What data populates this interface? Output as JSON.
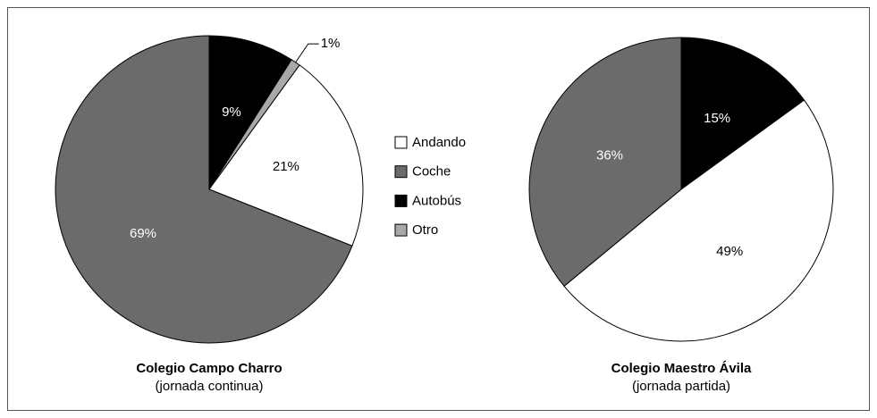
{
  "legend": [
    {
      "name": "Andando",
      "color": "#ffffff"
    },
    {
      "name": "Coche",
      "color": "#6b6b6b"
    },
    {
      "name": "Autobús",
      "color": "#000000"
    },
    {
      "name": "Otro",
      "color": "#a8a8a8"
    }
  ],
  "chart_data": [
    {
      "type": "pie",
      "title": "Colegio Campo Charro",
      "subtitle": "(jornada continua)",
      "categories": [
        "Autobús",
        "Otro",
        "Andando",
        "Coche"
      ],
      "values": [
        9,
        1,
        21,
        69
      ],
      "value_labels": [
        "9%",
        "1%",
        "21%",
        "69%"
      ]
    },
    {
      "type": "pie",
      "title": "Colegio Maestro Ávila",
      "subtitle": "(jornada partida)",
      "categories": [
        "Autobús",
        "Andando",
        "Coche"
      ],
      "values": [
        15,
        49,
        36
      ],
      "value_labels": [
        "15%",
        "49%",
        "36%"
      ]
    }
  ]
}
